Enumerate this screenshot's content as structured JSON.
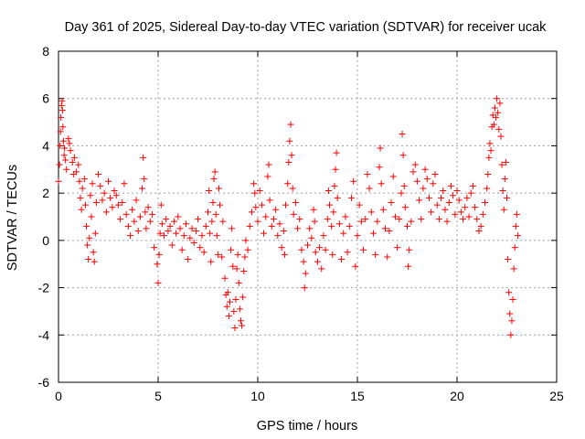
{
  "chart_data": {
    "type": "scatter",
    "title": "Day 361 of 2025, Sidereal Day-to-day VTEC variation (SDTVAR) for receiver ucak",
    "xlabel": "GPS time / hours",
    "ylabel": "SDTVAR / TECUs",
    "xlim": [
      0,
      25
    ],
    "ylim": [
      -6,
      8
    ],
    "xticks": [
      0,
      5,
      10,
      15,
      20,
      25
    ],
    "yticks": [
      -6,
      -4,
      -2,
      0,
      2,
      4,
      6,
      8
    ],
    "xtick_labels": [
      "0",
      "5",
      "10",
      "15",
      "20",
      "25"
    ],
    "ytick_labels": [
      "-6",
      "-4",
      "-2",
      "0",
      "2",
      "4",
      "6",
      "8"
    ],
    "grid": true,
    "marker": "+",
    "color": "#ff0000",
    "series": [
      {
        "name": "SDTVAR",
        "points": [
          [
            0.0,
            2.5
          ],
          [
            0.05,
            3.2
          ],
          [
            0.08,
            4.0
          ],
          [
            0.1,
            4.6
          ],
          [
            0.12,
            5.2
          ],
          [
            0.15,
            5.7
          ],
          [
            0.18,
            5.9
          ],
          [
            0.2,
            5.5
          ],
          [
            0.22,
            4.8
          ],
          [
            0.25,
            4.2
          ],
          [
            0.28,
            3.6
          ],
          [
            0.3,
            3.9
          ],
          [
            0.35,
            3.4
          ],
          [
            0.4,
            3.0
          ],
          [
            0.5,
            4.3
          ],
          [
            0.55,
            4.1
          ],
          [
            0.6,
            3.8
          ],
          [
            0.7,
            3.3
          ],
          [
            0.75,
            2.8
          ],
          [
            0.8,
            3.5
          ],
          [
            0.9,
            2.9
          ],
          [
            1.0,
            3.2
          ],
          [
            1.05,
            2.5
          ],
          [
            1.1,
            1.8
          ],
          [
            1.15,
            1.3
          ],
          [
            1.2,
            2.2
          ],
          [
            1.3,
            2.6
          ],
          [
            1.35,
            1.5
          ],
          [
            1.4,
            0.6
          ],
          [
            1.45,
            -0.2
          ],
          [
            1.5,
            -0.8
          ],
          [
            1.55,
            0.1
          ],
          [
            1.6,
            1.9
          ],
          [
            1.65,
            1.0
          ],
          [
            1.7,
            2.4
          ],
          [
            1.75,
            -0.5
          ],
          [
            1.8,
            -0.9
          ],
          [
            1.85,
            0.3
          ],
          [
            1.9,
            1.6
          ],
          [
            2.0,
            2.8
          ],
          [
            2.1,
            2.3
          ],
          [
            2.2,
            1.7
          ],
          [
            2.3,
            2.0
          ],
          [
            2.4,
            1.2
          ],
          [
            2.5,
            2.5
          ],
          [
            2.6,
            1.8
          ],
          [
            2.7,
            1.4
          ],
          [
            2.8,
            2.1
          ],
          [
            2.9,
            1.9
          ],
          [
            3.0,
            1.5
          ],
          [
            3.1,
            0.9
          ],
          [
            3.2,
            1.6
          ],
          [
            3.3,
            2.4
          ],
          [
            3.4,
            1.1
          ],
          [
            3.5,
            0.6
          ],
          [
            3.6,
            0.2
          ],
          [
            3.7,
            1.3
          ],
          [
            3.8,
            0.8
          ],
          [
            3.9,
            1.7
          ],
          [
            4.0,
            0.4
          ],
          [
            4.1,
            1.0
          ],
          [
            4.2,
            2.2
          ],
          [
            4.25,
            3.5
          ],
          [
            4.3,
            2.6
          ],
          [
            4.35,
            1.2
          ],
          [
            4.4,
            0.5
          ],
          [
            4.5,
            1.4
          ],
          [
            4.6,
            0.8
          ],
          [
            4.7,
            1.1
          ],
          [
            4.8,
            -0.3
          ],
          [
            4.95,
            -1.0
          ],
          [
            5.0,
            -1.8
          ],
          [
            5.05,
            -0.6
          ],
          [
            5.1,
            0.3
          ],
          [
            5.15,
            1.5
          ],
          [
            5.2,
            0.7
          ],
          [
            5.3,
            0.2
          ],
          [
            5.4,
            0.9
          ],
          [
            5.5,
            0.4
          ],
          [
            5.6,
            0.6
          ],
          [
            5.7,
            -0.2
          ],
          [
            5.8,
            0.8
          ],
          [
            5.9,
            0.3
          ],
          [
            6.0,
            1.0
          ],
          [
            6.1,
            0.5
          ],
          [
            6.2,
            -0.4
          ],
          [
            6.3,
            0.2
          ],
          [
            6.4,
            0.7
          ],
          [
            6.5,
            -0.8
          ],
          [
            6.6,
            0.1
          ],
          [
            6.7,
            0.5
          ],
          [
            6.8,
            -0.1
          ],
          [
            6.9,
            0.4
          ],
          [
            7.0,
            0.9
          ],
          [
            7.1,
            -0.3
          ],
          [
            7.2,
            0.2
          ],
          [
            7.3,
            -0.5
          ],
          [
            7.4,
            0.6
          ],
          [
            7.5,
            1.2
          ],
          [
            7.55,
            2.1
          ],
          [
            7.6,
            0.3
          ],
          [
            7.65,
            -0.9
          ],
          [
            7.7,
            0.8
          ],
          [
            7.75,
            1.6
          ],
          [
            7.8,
            2.6
          ],
          [
            7.85,
            2.9
          ],
          [
            7.9,
            1.1
          ],
          [
            7.95,
            0.2
          ],
          [
            8.0,
            -0.6
          ],
          [
            8.05,
            2.2
          ],
          [
            8.1,
            1.5
          ],
          [
            8.2,
            -0.7
          ],
          [
            8.25,
            0.8
          ],
          [
            8.35,
            -1.6
          ],
          [
            8.4,
            -2.3
          ],
          [
            8.45,
            -2.8
          ],
          [
            8.5,
            -2.2
          ],
          [
            8.55,
            -3.2
          ],
          [
            8.6,
            -2.6
          ],
          [
            8.65,
            -0.4
          ],
          [
            8.7,
            0.5
          ],
          [
            8.75,
            -1.1
          ],
          [
            8.8,
            -3.0
          ],
          [
            8.85,
            -3.7
          ],
          [
            8.9,
            -2.5
          ],
          [
            8.95,
            -1.2
          ],
          [
            9.0,
            -0.6
          ],
          [
            9.05,
            -1.8
          ],
          [
            9.1,
            -2.9
          ],
          [
            9.15,
            -3.4
          ],
          [
            9.2,
            -3.6
          ],
          [
            9.25,
            -2.4
          ],
          [
            9.3,
            -1.3
          ],
          [
            9.35,
            -0.7
          ],
          [
            9.4,
            0.0
          ],
          [
            9.5,
            -0.4
          ],
          [
            9.6,
            0.6
          ],
          [
            9.7,
            1.2
          ],
          [
            9.8,
            2.4
          ],
          [
            9.85,
            2.0
          ],
          [
            9.9,
            1.4
          ],
          [
            10.0,
            0.8
          ],
          [
            10.1,
            2.1
          ],
          [
            10.2,
            1.5
          ],
          [
            10.3,
            0.3
          ],
          [
            10.4,
            1.0
          ],
          [
            10.5,
            2.7
          ],
          [
            10.55,
            3.2
          ],
          [
            10.6,
            1.7
          ],
          [
            10.7,
            0.6
          ],
          [
            10.8,
            0.9
          ],
          [
            10.9,
            1.3
          ],
          [
            11.0,
            0.2
          ],
          [
            11.1,
            0.7
          ],
          [
            11.2,
            -0.3
          ],
          [
            11.3,
            0.4
          ],
          [
            11.35,
            -0.6
          ],
          [
            11.4,
            1.5
          ],
          [
            11.5,
            2.4
          ],
          [
            11.55,
            3.3
          ],
          [
            11.6,
            4.2
          ],
          [
            11.65,
            4.9
          ],
          [
            11.7,
            3.6
          ],
          [
            11.75,
            2.2
          ],
          [
            11.8,
            1.1
          ],
          [
            11.9,
            1.6
          ],
          [
            12.0,
            0.5
          ],
          [
            12.1,
            0.9
          ],
          [
            12.2,
            -0.4
          ],
          [
            12.3,
            -0.9
          ],
          [
            12.35,
            -2.0
          ],
          [
            12.4,
            -1.4
          ],
          [
            12.5,
            -0.2
          ],
          [
            12.6,
            0.5
          ],
          [
            12.7,
            0.1
          ],
          [
            12.8,
            1.3
          ],
          [
            12.85,
            0.8
          ],
          [
            12.9,
            -0.5
          ],
          [
            13.0,
            -0.9
          ],
          [
            13.1,
            -0.3
          ],
          [
            13.2,
            -1.2
          ],
          [
            13.3,
            0.2
          ],
          [
            13.4,
            -0.4
          ],
          [
            13.5,
            0.9
          ],
          [
            13.55,
            2.1
          ],
          [
            13.6,
            1.5
          ],
          [
            13.7,
            0.6
          ],
          [
            13.75,
            -0.6
          ],
          [
            13.8,
            1.2
          ],
          [
            13.85,
            2.3
          ],
          [
            13.9,
            3.0
          ],
          [
            13.95,
            3.7
          ],
          [
            14.0,
            1.8
          ],
          [
            14.1,
            0.7
          ],
          [
            14.2,
            -0.8
          ],
          [
            14.3,
            0.3
          ],
          [
            14.4,
            1.0
          ],
          [
            14.5,
            -0.5
          ],
          [
            14.6,
            0.6
          ],
          [
            14.7,
            1.8
          ],
          [
            14.8,
            2.5
          ],
          [
            14.9,
            -1.1
          ],
          [
            15.0,
            0.2
          ],
          [
            15.1,
            1.5
          ],
          [
            15.2,
            0.8
          ],
          [
            15.3,
            -0.4
          ],
          [
            15.4,
            0.9
          ],
          [
            15.5,
            2.8
          ],
          [
            15.6,
            2.2
          ],
          [
            15.7,
            1.2
          ],
          [
            15.8,
            0.3
          ],
          [
            15.9,
            -0.6
          ],
          [
            16.0,
            0.8
          ],
          [
            16.1,
            3.1
          ],
          [
            16.15,
            3.9
          ],
          [
            16.2,
            2.4
          ],
          [
            16.3,
            1.3
          ],
          [
            16.4,
            0.5
          ],
          [
            16.5,
            -0.7
          ],
          [
            16.6,
            0.4
          ],
          [
            16.7,
            1.6
          ],
          [
            16.8,
            2.7
          ],
          [
            16.9,
            1.0
          ],
          [
            17.0,
            -0.3
          ],
          [
            17.1,
            0.9
          ],
          [
            17.2,
            2.0
          ],
          [
            17.25,
            4.5
          ],
          [
            17.3,
            3.6
          ],
          [
            17.35,
            2.3
          ],
          [
            17.4,
            1.4
          ],
          [
            17.5,
            0.6
          ],
          [
            17.55,
            -1.1
          ],
          [
            17.6,
            -0.4
          ],
          [
            17.7,
            0.8
          ],
          [
            17.8,
            2.9
          ],
          [
            17.9,
            3.2
          ],
          [
            18.0,
            2.5
          ],
          [
            18.1,
            1.7
          ],
          [
            18.2,
            0.9
          ],
          [
            18.3,
            2.2
          ],
          [
            18.4,
            3.0
          ],
          [
            18.5,
            2.6
          ],
          [
            18.6,
            1.8
          ],
          [
            18.7,
            1.2
          ],
          [
            18.8,
            2.4
          ],
          [
            18.9,
            2.8
          ],
          [
            19.0,
            1.5
          ],
          [
            19.1,
            0.9
          ],
          [
            19.2,
            1.8
          ],
          [
            19.3,
            2.1
          ],
          [
            19.4,
            1.3
          ],
          [
            19.5,
            0.8
          ],
          [
            19.6,
            1.6
          ],
          [
            19.7,
            2.3
          ],
          [
            19.8,
            1.9
          ],
          [
            19.9,
            1.1
          ],
          [
            20.0,
            2.1
          ],
          [
            20.1,
            1.7
          ],
          [
            20.2,
            1.2
          ],
          [
            20.3,
            0.9
          ],
          [
            20.4,
            1.4
          ],
          [
            20.5,
            1.8
          ],
          [
            20.6,
            1.0
          ],
          [
            20.7,
            2.0
          ],
          [
            20.8,
            2.3
          ],
          [
            20.9,
            1.4
          ],
          [
            21.0,
            0.9
          ],
          [
            21.1,
            0.4
          ],
          [
            21.2,
            0.6
          ],
          [
            21.3,
            1.1
          ],
          [
            21.4,
            1.6
          ],
          [
            21.5,
            2.2
          ],
          [
            21.55,
            2.8
          ],
          [
            21.6,
            3.5
          ],
          [
            21.65,
            4.1
          ],
          [
            21.7,
            3.8
          ],
          [
            21.75,
            4.8
          ],
          [
            21.8,
            5.3
          ],
          [
            21.85,
            4.9
          ],
          [
            21.9,
            5.6
          ],
          [
            21.95,
            5.2
          ],
          [
            22.0,
            6.0
          ],
          [
            22.05,
            5.4
          ],
          [
            22.1,
            4.7
          ],
          [
            22.15,
            5.8
          ],
          [
            22.2,
            4.4
          ],
          [
            22.25,
            3.2
          ],
          [
            22.3,
            2.1
          ],
          [
            22.35,
            1.3
          ],
          [
            22.4,
            2.6
          ],
          [
            22.45,
            3.3
          ],
          [
            22.5,
            1.8
          ],
          [
            22.55,
            -0.8
          ],
          [
            22.6,
            -2.2
          ],
          [
            22.65,
            -3.1
          ],
          [
            22.7,
            -4.0
          ],
          [
            22.75,
            -3.4
          ],
          [
            22.8,
            -2.5
          ],
          [
            22.85,
            -1.2
          ],
          [
            22.9,
            -0.3
          ],
          [
            22.95,
            0.6
          ],
          [
            23.0,
            1.1
          ],
          [
            23.05,
            0.2
          ]
        ]
      }
    ]
  }
}
